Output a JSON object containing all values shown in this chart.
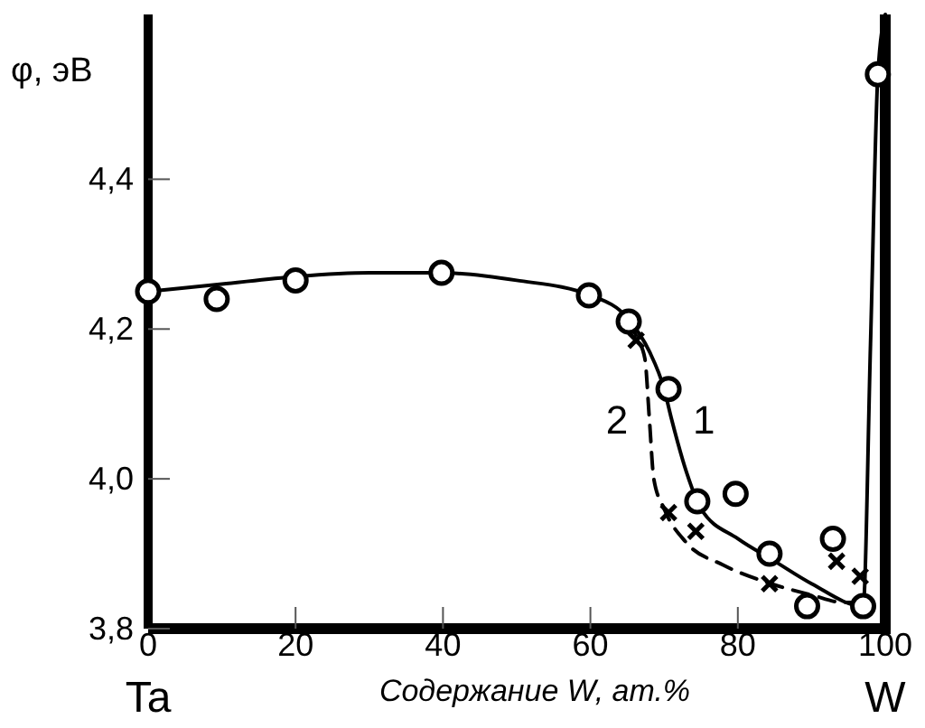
{
  "chart_data": {
    "type": "scatter",
    "ylabel": "φ, эВ",
    "xlabel": "Содержание W, ат.%",
    "xlim": [
      0,
      100
    ],
    "ylim": [
      3.8,
      4.62
    ],
    "xticks": [
      0,
      20,
      40,
      60,
      80,
      100
    ],
    "yticks": [
      {
        "value": 3.8,
        "label": "3,8"
      },
      {
        "value": 4.0,
        "label": "4,0"
      },
      {
        "value": 4.2,
        "label": "4,2"
      },
      {
        "value": 4.4,
        "label": "4,4"
      }
    ],
    "grid": false,
    "legend": false,
    "annotations": [
      "Ta",
      "W"
    ],
    "series": [
      {
        "type": "line",
        "name": "1",
        "line_style": "solid",
        "color": "#000000",
        "x": [
          0,
          10,
          20,
          30,
          40,
          50,
          60,
          65,
          68,
          70,
          71,
          73,
          75,
          80,
          85,
          90,
          97,
          98,
          99,
          100
        ],
        "values": [
          4.25,
          4.26,
          4.27,
          4.275,
          4.275,
          4.265,
          4.245,
          4.215,
          4.17,
          4.12,
          4.08,
          4.01,
          3.96,
          3.92,
          3.89,
          3.86,
          3.83,
          4.18,
          4.54,
          4.62
        ]
      },
      {
        "type": "line",
        "name": "2",
        "line_style": "dashed",
        "color": "#000000",
        "x": [
          65,
          66.5,
          67.4,
          68,
          68.6,
          70,
          73,
          78,
          84.5,
          90,
          94.3,
          96.8
        ],
        "values": [
          4.21,
          4.185,
          4.16,
          4.08,
          4.0,
          3.96,
          3.915,
          3.885,
          3.86,
          3.845,
          3.835,
          3.835
        ]
      },
      {
        "type": "scatter",
        "marker": "circle",
        "color": "#000000",
        "x": [
          0,
          9.3,
          20,
          39.8,
          59.8,
          65.2,
          70.6,
          74.5,
          79.7,
          84.3,
          89.4,
          92.9,
          97,
          99
        ],
        "values": [
          4.25,
          4.24,
          4.265,
          4.275,
          4.245,
          4.21,
          4.12,
          3.97,
          3.98,
          3.9,
          3.83,
          3.92,
          3.83,
          4.54
        ]
      },
      {
        "type": "scatter",
        "marker": "cross",
        "color": "#000000",
        "x": [
          66.2,
          70.6,
          74.3,
          84.3,
          93.4,
          96.6
        ],
        "values": [
          4.185,
          3.955,
          3.93,
          3.86,
          3.89,
          3.87
        ]
      }
    ]
  }
}
